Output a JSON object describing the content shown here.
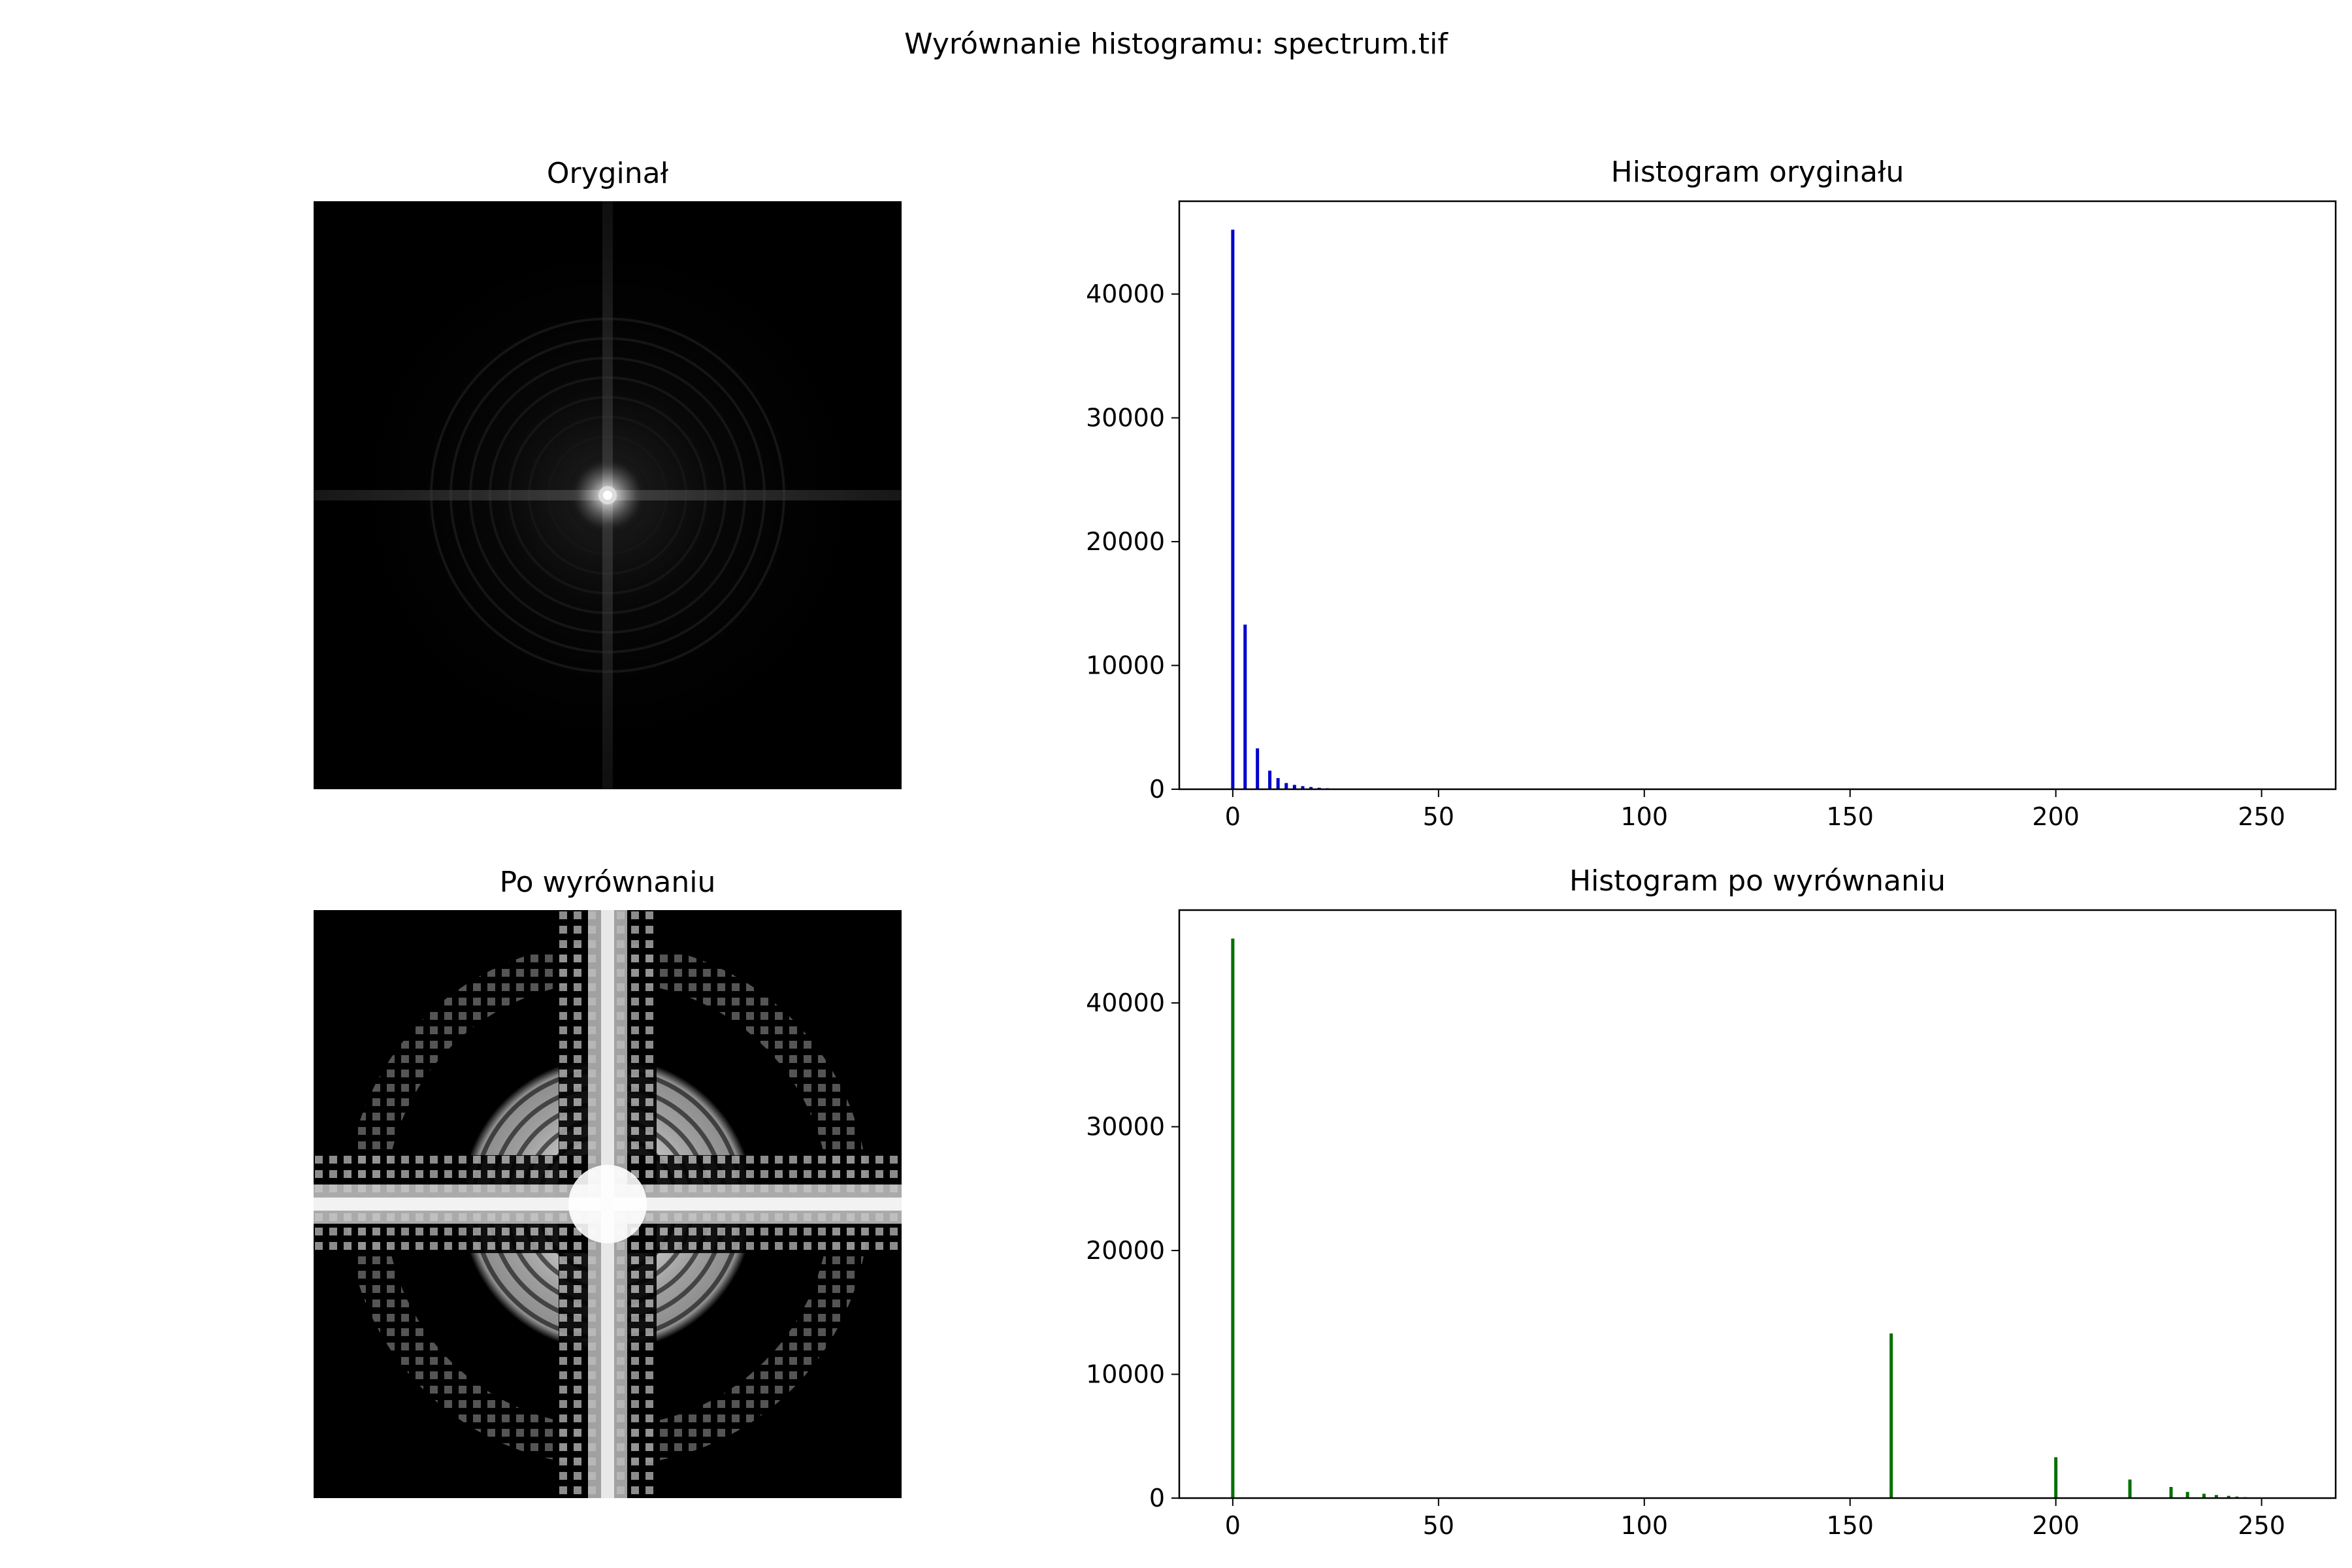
{
  "figure": {
    "suptitle": "Wyrównanie histogramu: spectrum.tif",
    "panels": {
      "original_image": {
        "title": "Oryginał"
      },
      "equalized_image": {
        "title": "Po wyrównaniu"
      }
    }
  },
  "chart_data": [
    {
      "type": "bar",
      "title": "Histogram oryginału",
      "xlabel": "",
      "ylabel": "",
      "color": "#0000cc",
      "xlim": [
        -13,
        268
      ],
      "ylim": [
        0,
        47500
      ],
      "xticks": [
        0,
        50,
        100,
        150,
        200,
        250
      ],
      "yticks": [
        0,
        10000,
        20000,
        30000,
        40000
      ],
      "x": [
        0,
        3,
        6,
        9,
        11,
        13,
        15,
        17,
        19,
        21,
        23,
        25
      ],
      "values": [
        45200,
        13300,
        3300,
        1500,
        900,
        500,
        350,
        250,
        180,
        120,
        80,
        50
      ]
    },
    {
      "type": "bar",
      "title": "Histogram po wyrównaniu",
      "xlabel": "",
      "ylabel": "",
      "color": "#007000",
      "xlim": [
        -13,
        268
      ],
      "ylim": [
        0,
        47500
      ],
      "xticks": [
        0,
        50,
        100,
        150,
        200,
        250
      ],
      "yticks": [
        0,
        10000,
        20000,
        30000,
        40000
      ],
      "x": [
        0,
        160,
        200,
        218,
        228,
        232,
        236,
        239,
        242,
        244,
        246,
        248,
        250
      ],
      "values": [
        45200,
        13300,
        3300,
        1500,
        900,
        500,
        350,
        250,
        180,
        120,
        80,
        50,
        30
      ]
    }
  ]
}
